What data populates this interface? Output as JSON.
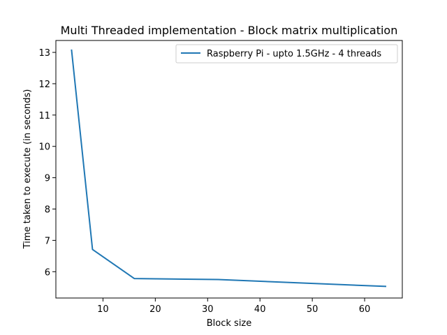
{
  "chart_data": {
    "type": "line",
    "title": "Multi Threaded implementation - Block matrix multiplication",
    "xlabel": "Block size",
    "ylabel": "Time taken to execute (in seconds)",
    "xlim": [
      0.999,
      67.2
    ],
    "ylim": [
      5.16,
      13.38
    ],
    "xticks": [
      10,
      20,
      30,
      40,
      50,
      60
    ],
    "yticks": [
      6,
      7,
      8,
      9,
      10,
      11,
      12,
      13
    ],
    "grid": false,
    "legend_position": "top-right",
    "series": [
      {
        "name": "Raspberry Pi - upto 1.5GHz - 4 threads",
        "color": "#1f77b4",
        "x": [
          4,
          8,
          16,
          32,
          64
        ],
        "y": [
          13.07,
          6.71,
          5.78,
          5.75,
          5.53
        ]
      }
    ]
  }
}
